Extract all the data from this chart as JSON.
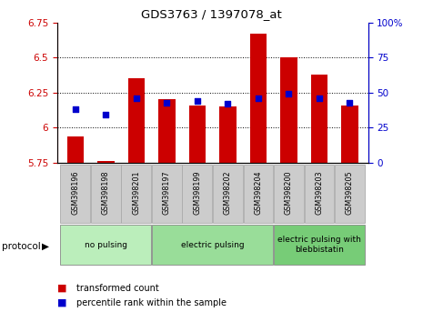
{
  "title": "GDS3763 / 1397078_at",
  "samples": [
    "GSM398196",
    "GSM398198",
    "GSM398201",
    "GSM398197",
    "GSM398199",
    "GSM398202",
    "GSM398204",
    "GSM398200",
    "GSM398203",
    "GSM398205"
  ],
  "transformed_count": [
    5.94,
    5.76,
    6.35,
    6.2,
    6.16,
    6.15,
    6.67,
    6.5,
    6.38,
    6.16
  ],
  "percentile_rank": [
    6.13,
    6.09,
    6.21,
    6.18,
    6.19,
    6.17,
    6.21,
    6.24,
    6.21,
    6.18
  ],
  "bar_bottom": 5.75,
  "ylim_left": [
    5.75,
    6.75
  ],
  "ylim_right": [
    0,
    100
  ],
  "yticks_left": [
    5.75,
    6.0,
    6.25,
    6.5,
    6.75
  ],
  "ytick_labels_left": [
    "5.75",
    "6",
    "6.25",
    "6.5",
    "6.75"
  ],
  "yticks_right": [
    0,
    25,
    50,
    75,
    100
  ],
  "ytick_labels_right": [
    "0",
    "25",
    "50",
    "75",
    "100%"
  ],
  "bar_color": "#cc0000",
  "dot_color": "#0000cc",
  "group_configs": [
    {
      "start": 0,
      "end": 2,
      "label": "no pulsing",
      "color": "#bbeebb"
    },
    {
      "start": 3,
      "end": 6,
      "label": "electric pulsing",
      "color": "#99dd99"
    },
    {
      "start": 7,
      "end": 9,
      "label": "electric pulsing with\nblebbistatin",
      "color": "#77cc77"
    }
  ],
  "tick_color_left": "#cc0000",
  "tick_color_right": "#0000cc",
  "bar_width": 0.55,
  "gridline_color": "#000000",
  "gridline_vals": [
    6.0,
    6.25,
    6.5
  ],
  "sample_bg_color": "#cccccc",
  "protocol_label": "protocol"
}
